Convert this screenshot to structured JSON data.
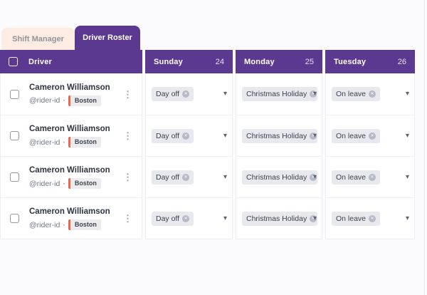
{
  "tabs": [
    {
      "label": "Shift Manager",
      "active": false
    },
    {
      "label": "Driver Roster",
      "active": true
    }
  ],
  "table": {
    "driver_header": "Driver",
    "day_columns": [
      {
        "label": "Sunday",
        "date": "24"
      },
      {
        "label": "Monday",
        "date": "25"
      },
      {
        "label": "Tuesday",
        "date": "26"
      }
    ],
    "rows": [
      {
        "name": "Cameron Williamson",
        "rider_id": "@rider-id",
        "separator": "·",
        "city": "Boston",
        "days": [
          {
            "status": "Day off"
          },
          {
            "status": "Christmas Holiday"
          },
          {
            "status": "On leave"
          }
        ]
      },
      {
        "name": "Cameron Williamson",
        "rider_id": "@rider-id",
        "separator": "·",
        "city": "Boston",
        "days": [
          {
            "status": "Day off"
          },
          {
            "status": "Christmas Holiday"
          },
          {
            "status": "On leave"
          }
        ]
      },
      {
        "name": "Cameron Williamson",
        "rider_id": "@rider-id",
        "separator": "·",
        "city": "Boston",
        "days": [
          {
            "status": "Day off"
          },
          {
            "status": "Christmas Holiday"
          },
          {
            "status": "On leave"
          }
        ]
      },
      {
        "name": "Cameron Williamson",
        "rider_id": "@rider-id",
        "separator": "·",
        "city": "Boston",
        "days": [
          {
            "status": "Day off"
          },
          {
            "status": "Christmas Holiday"
          },
          {
            "status": "On leave"
          }
        ]
      }
    ]
  },
  "icons": {
    "kebab": "⋮",
    "caret": "▾",
    "close": "✕"
  },
  "colors": {
    "accent_purple": "#5b3990",
    "inactive_tab_bg": "#fdece1",
    "chip_bg": "#e8e9ee",
    "badge_accent": "#e56a52",
    "page_bg": "#fbfbfe"
  }
}
